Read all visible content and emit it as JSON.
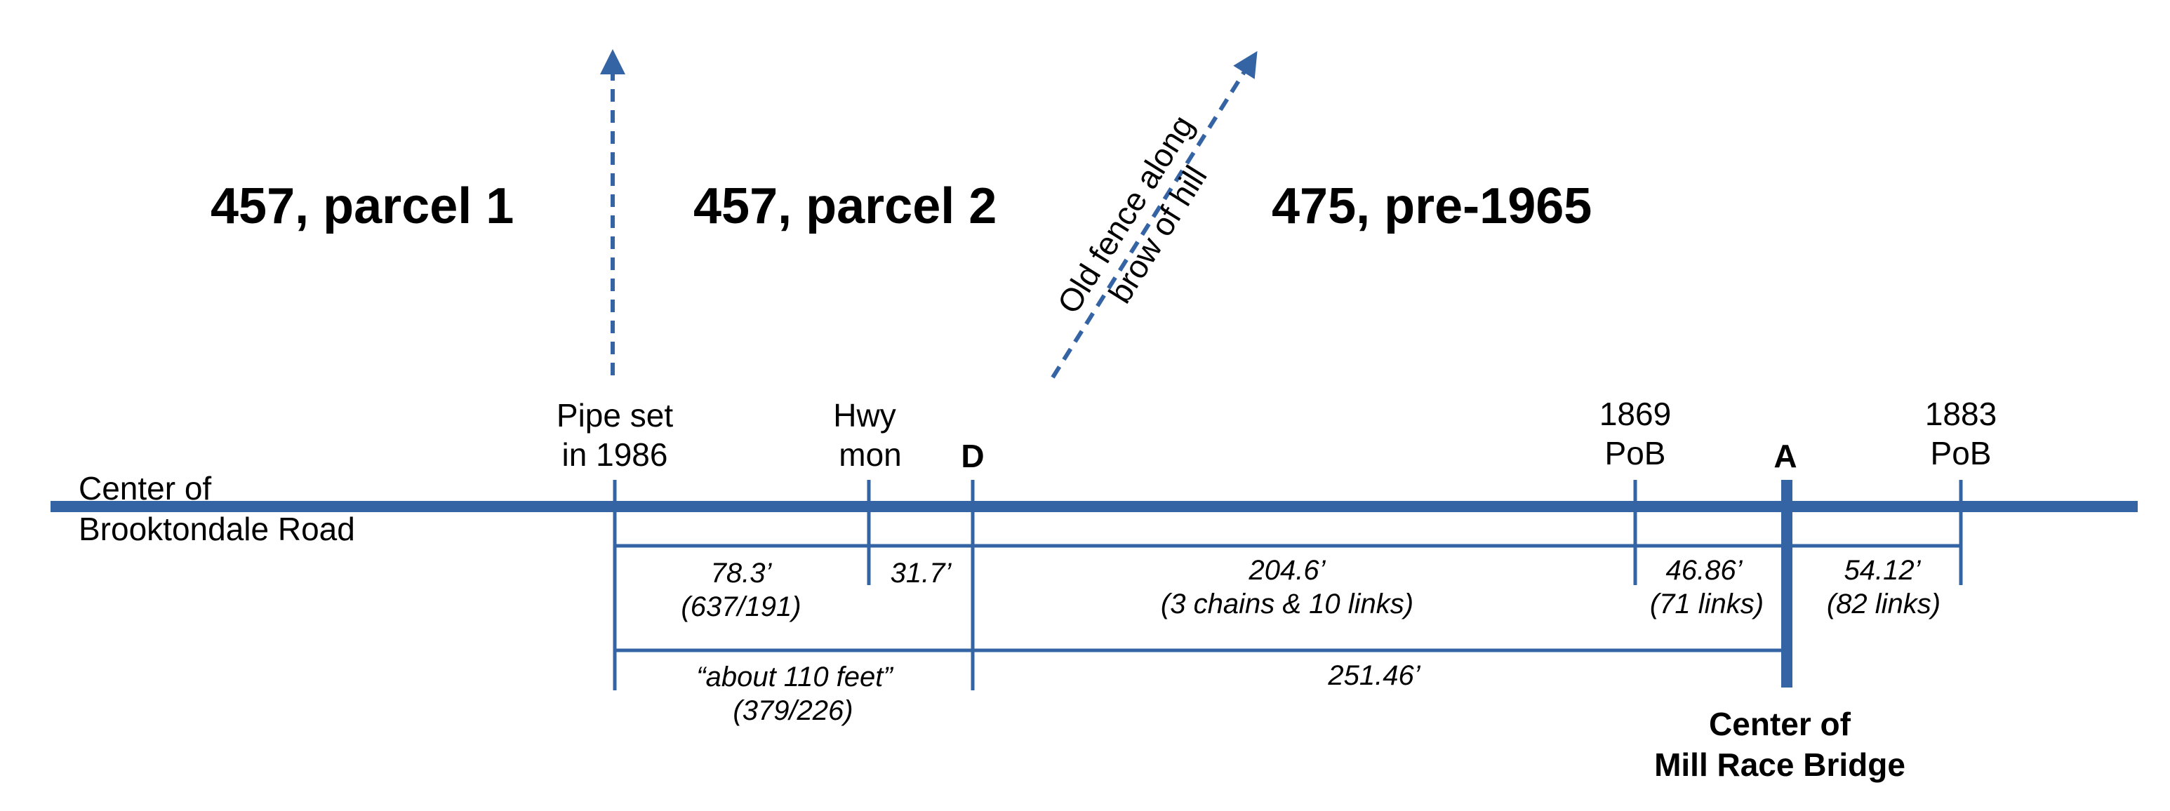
{
  "colors": {
    "line": "#3464a4",
    "text": "#000000",
    "background": "#ffffff"
  },
  "parcels": [
    {
      "id": "p1",
      "label": "457, parcel 1"
    },
    {
      "id": "p2",
      "label": "457, parcel 2"
    },
    {
      "id": "p3",
      "label": "475, pre-1965"
    }
  ],
  "road": {
    "line1": "Center of",
    "line2": "Brooktondale Road"
  },
  "fence": {
    "line1": "Old fence along",
    "line2": "brow of hill"
  },
  "markers": {
    "pipe": {
      "line1": "Pipe set",
      "line2": "in 1986"
    },
    "hwy": {
      "line1": "Hwy",
      "line2": "mon"
    },
    "d": {
      "label": "D"
    },
    "pob1869": {
      "line1": "1869",
      "line2": "PoB"
    },
    "a": {
      "label": "A"
    },
    "pob1883": {
      "line1": "1883",
      "line2": "PoB"
    }
  },
  "measurements": {
    "m1": {
      "line1": "78.3’",
      "line2": "(637/191)"
    },
    "m2": {
      "line1": "31.7’"
    },
    "m3": {
      "line1": "204.6’",
      "line2": "(3 chains & 10 links)"
    },
    "m4": {
      "line1": "46.86’",
      "line2": "(71 links)"
    },
    "m5": {
      "line1": "54.12’",
      "line2": "(82 links)"
    },
    "m6": {
      "line1": "“about 110 feet”",
      "line2": "(379/226)"
    },
    "m7": {
      "line1": "251.46’"
    }
  },
  "bridge": {
    "line1": "Center of",
    "line2": "Mill Race Bridge"
  }
}
